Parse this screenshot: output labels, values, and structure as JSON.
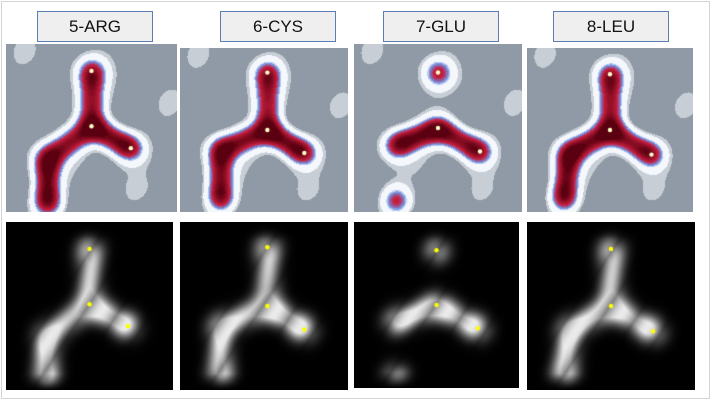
{
  "residues": [
    {
      "label": "5-ARG"
    },
    {
      "label": "6-CYS"
    },
    {
      "label": "7-GLU"
    },
    {
      "label": "8-LEU"
    }
  ],
  "colors": {
    "label_border": "#5b7fb5",
    "label_fill": "#efefef",
    "contour_background": "#f4f7fb",
    "contour_grey": "#8f9aa6",
    "contour_blue": "#6f8fe0",
    "contour_red": "#c81e3e",
    "contour_peak": "#5a0010",
    "marker": "#ffff00",
    "greyscale_background": "#000000"
  }
}
